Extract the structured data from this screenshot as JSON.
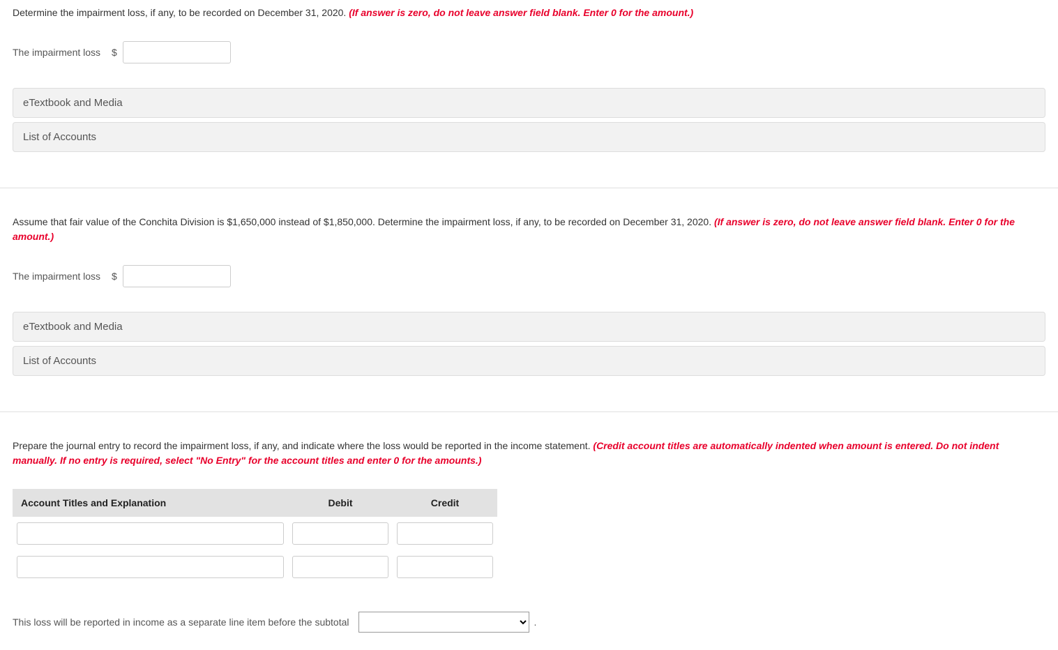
{
  "q1": {
    "prompt_main": "Determine the impairment loss, if any, to be recorded on December 31, 2020. ",
    "prompt_hint": "(If answer is zero, do not leave answer field blank. Enter 0 for the amount.)",
    "label": "The impairment loss",
    "currency": "$",
    "value": "",
    "accordion1": "eTextbook and Media",
    "accordion2": "List of Accounts"
  },
  "q2": {
    "prompt_main": "Assume that fair value of the Conchita Division is $1,650,000 instead of $1,850,000. Determine the impairment loss, if any, to be recorded on December 31, 2020. ",
    "prompt_hint": "(If answer is zero, do not leave answer field blank. Enter 0 for the amount.)",
    "label": "The impairment loss",
    "currency": "$",
    "value": "",
    "accordion1": "eTextbook and Media",
    "accordion2": "List of Accounts"
  },
  "q3": {
    "prompt_main": "Prepare the journal entry to record the impairment loss, if any, and indicate where the loss would be reported in the income statement. ",
    "prompt_hint": "(Credit account titles are automatically indented when amount is entered. Do not indent manually. If no entry is required, select \"No Entry\" for the account titles and enter 0 for the amounts.)",
    "table": {
      "headers": {
        "account": "Account Titles and Explanation",
        "debit": "Debit",
        "credit": "Credit"
      },
      "rows": [
        {
          "account": "",
          "debit": "",
          "credit": ""
        },
        {
          "account": "",
          "debit": "",
          "credit": ""
        }
      ]
    },
    "subtotal_text": "This loss will be reported in income as a separate line item before the subtotal",
    "subtotal_selected": "",
    "period": "."
  }
}
